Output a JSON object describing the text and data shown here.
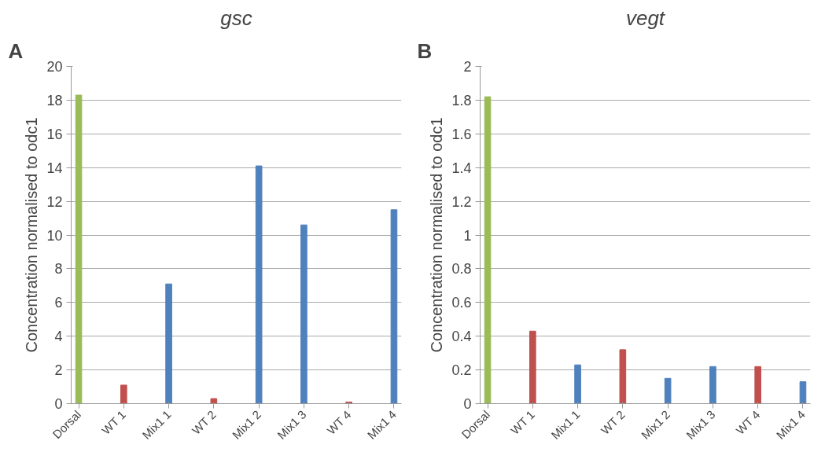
{
  "chart_data": [
    {
      "type": "bar",
      "title": "gsc",
      "ylabel": "Concentration normalised to odc1",
      "annotations": [
        "A"
      ],
      "categories": [
        "Dorsal",
        null,
        null,
        "WT 1",
        null,
        null,
        "Mix1 1",
        null,
        null,
        "WT 2",
        null,
        null,
        "Mix1 2",
        null,
        null,
        "Mix1 3",
        null,
        null,
        "WT 4",
        null,
        null,
        "Mix1 4"
      ],
      "values": [
        18.3,
        null,
        null,
        1.1,
        null,
        null,
        7.1,
        null,
        null,
        0.3,
        null,
        null,
        14.1,
        null,
        null,
        10.6,
        null,
        null,
        0.1,
        null,
        null,
        11.5
      ],
      "colors": [
        "#9bbb59",
        null,
        null,
        "#c0504d",
        null,
        null,
        "#4f81bd",
        null,
        null,
        "#c0504d",
        null,
        null,
        "#4f81bd",
        null,
        null,
        "#4f81bd",
        null,
        null,
        "#c0504d",
        null,
        null,
        "#4f81bd"
      ],
      "ylim": [
        0,
        20
      ],
      "yticks": [
        0,
        2,
        4,
        6,
        8,
        10,
        12,
        14,
        16,
        18,
        20
      ],
      "grid": "y"
    },
    {
      "type": "bar",
      "title": "vegt",
      "ylabel": "Concentration normalised to odc1",
      "annotations": [
        "B"
      ],
      "categories": [
        "Dorsal",
        null,
        null,
        "WT 1",
        null,
        null,
        "Mix1 1",
        null,
        null,
        "WT 2",
        null,
        null,
        "Mix1 2",
        null,
        null,
        "Mix1 3",
        null,
        null,
        "WT 4",
        null,
        null,
        "Mix1 4"
      ],
      "values": [
        1.82,
        null,
        null,
        0.43,
        null,
        null,
        0.23,
        null,
        null,
        0.32,
        null,
        null,
        0.15,
        null,
        null,
        0.22,
        null,
        null,
        0.22,
        null,
        null,
        0.13
      ],
      "colors": [
        "#9bbb59",
        null,
        null,
        "#c0504d",
        null,
        null,
        "#4f81bd",
        null,
        null,
        "#c0504d",
        null,
        null,
        "#4f81bd",
        null,
        null,
        "#4f81bd",
        null,
        null,
        "#c0504d",
        null,
        null,
        "#4f81bd"
      ],
      "ylim": [
        0,
        2
      ],
      "yticks": [
        0,
        {
          "value": 0.2,
          "label": "0.2"
        },
        {
          "value": 0.4,
          "label": "0.4"
        },
        {
          "value": 0.6,
          "label": "0.6"
        },
        {
          "value": 0.8,
          "label": "0.8"
        },
        1,
        {
          "value": 1.2,
          "label": "1.2"
        },
        {
          "value": 1.4,
          "label": "1.4"
        },
        {
          "value": 1.6,
          "label": "1.6"
        },
        {
          "value": 1.8,
          "label": "1.8"
        },
        2
      ],
      "grid": "y"
    }
  ]
}
